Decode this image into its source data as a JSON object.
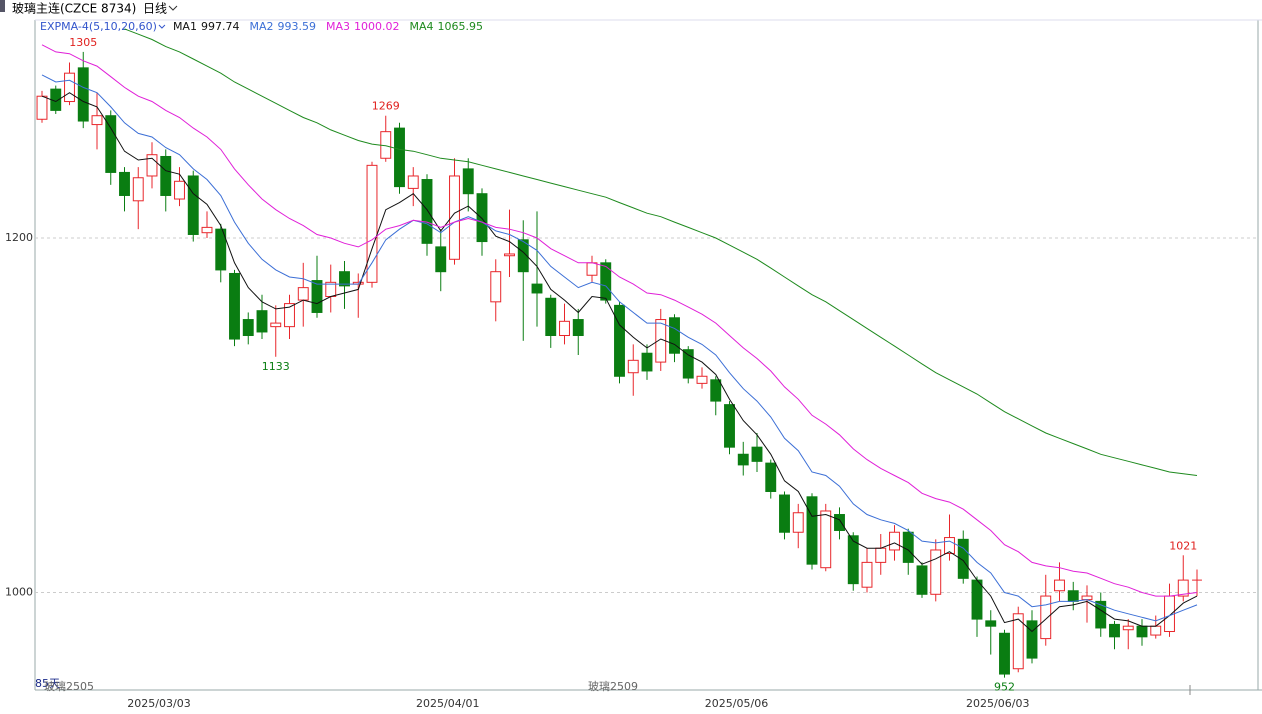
{
  "chart_data": {
    "type": "candlestick",
    "title": "玻璃主连(CZCE 8734)",
    "period": "日线",
    "indicator": "EXPMA-4(5,10,20,60)",
    "footer_labels": {
      "days": "85天",
      "contracts": [
        "玻璃2505",
        "玻璃2509"
      ]
    },
    "categories": [
      null,
      null,
      null,
      null,
      null,
      null,
      null,
      null,
      "2025/03/03",
      null,
      null,
      null,
      null,
      null,
      null,
      null,
      null,
      null,
      null,
      null,
      null,
      null,
      null,
      null,
      null,
      null,
      null,
      null,
      null,
      "2025/04/01",
      null,
      null,
      null,
      null,
      null,
      null,
      null,
      null,
      null,
      null,
      null,
      null,
      null,
      null,
      null,
      null,
      null,
      null,
      null,
      null,
      "2025/05/06",
      null,
      null,
      null,
      null,
      null,
      null,
      null,
      null,
      null,
      null,
      null,
      null,
      null,
      null,
      null,
      null,
      null,
      null,
      "2025/06/03",
      null,
      null,
      null,
      null,
      null,
      null,
      null,
      null,
      null,
      null,
      null,
      null,
      null,
      null,
      null
    ],
    "open": [
      1267,
      1284,
      1277,
      1296,
      1264,
      1269,
      1237,
      1221,
      1235,
      1246,
      1222,
      1235,
      1203,
      1205,
      1180,
      1154,
      1159,
      1150,
      1150,
      1165,
      1176,
      1167,
      1181,
      1174,
      1175,
      1245,
      1262,
      1228,
      1233,
      1195,
      1188,
      1239,
      1225,
      1164,
      1190,
      1199,
      1174,
      1166,
      1145,
      1154,
      1179,
      1186,
      1162,
      1124,
      1135,
      1130,
      1155,
      1137,
      1118,
      1120,
      1106,
      1078,
      1082,
      1073,
      1055,
      1034,
      1054,
      1014,
      1044,
      1032,
      1003,
      1017,
      1024,
      1034,
      1015,
      999,
      1022,
      1030,
      1007,
      984,
      977,
      957,
      984,
      974,
      1001,
      1001,
      996,
      995,
      982,
      979,
      981,
      976,
      978,
      998,
      1007
    ],
    "high": [
      1283,
      1286,
      1299,
      1305,
      1282,
      1272,
      1240,
      1240,
      1254,
      1250,
      1240,
      1238,
      1215,
      1208,
      1182,
      1158,
      1168,
      1162,
      1168,
      1186,
      1190,
      1185,
      1187,
      1180,
      1243,
      1269,
      1265,
      1240,
      1236,
      1205,
      1245,
      1245,
      1228,
      1188,
      1216,
      1210,
      1215,
      1168,
      1163,
      1160,
      1190,
      1188,
      1164,
      1140,
      1140,
      1160,
      1157,
      1139,
      1127,
      1122,
      1108,
      1085,
      1090,
      1075,
      1057,
      1050,
      1056,
      1050,
      1048,
      1034,
      1025,
      1033,
      1038,
      1036,
      1017,
      1030,
      1044,
      1035,
      1009,
      990,
      979,
      992,
      990,
      1010,
      1017,
      1006,
      1004,
      1000,
      984,
      985,
      985,
      987,
      1005,
      1021,
      1013
    ],
    "low": [
      1265,
      1270,
      1275,
      1262,
      1250,
      1230,
      1215,
      1205,
      1228,
      1215,
      1218,
      1198,
      1200,
      1175,
      1139,
      1140,
      1143,
      1133,
      1143,
      1150,
      1155,
      1158,
      1160,
      1155,
      1172,
      1243,
      1225,
      1218,
      1190,
      1170,
      1185,
      1215,
      1190,
      1153,
      1178,
      1142,
      1150,
      1138,
      1140,
      1134,
      1175,
      1163,
      1118,
      1111,
      1120,
      1125,
      1130,
      1118,
      1115,
      1100,
      1078,
      1066,
      1068,
      1053,
      1030,
      1025,
      1013,
      1012,
      1030,
      1001,
      1000,
      1010,
      1018,
      1010,
      997,
      995,
      1018,
      1005,
      975,
      965,
      952,
      955,
      960,
      970,
      995,
      990,
      983,
      975,
      968,
      968,
      970,
      974,
      975,
      995,
      998
    ],
    "close": [
      1280,
      1272,
      1293,
      1266,
      1269,
      1237,
      1224,
      1234,
      1247,
      1224,
      1232,
      1202,
      1206,
      1182,
      1143,
      1145,
      1147,
      1152,
      1163,
      1172,
      1158,
      1175,
      1173,
      1175,
      1241,
      1260,
      1229,
      1235,
      1197,
      1181,
      1235,
      1225,
      1198,
      1181,
      1191,
      1181,
      1169,
      1145,
      1153,
      1145,
      1186,
      1165,
      1122,
      1131,
      1125,
      1154,
      1135,
      1121,
      1122,
      1108,
      1082,
      1072,
      1074,
      1057,
      1034,
      1045,
      1016,
      1046,
      1035,
      1005,
      1017,
      1025,
      1034,
      1017,
      999,
      1024,
      1031,
      1008,
      985,
      981,
      954,
      988,
      963,
      998,
      1007,
      995,
      998,
      980,
      975,
      981,
      975,
      981,
      998,
      1007,
      1007
    ],
    "up_color": "#e8262b",
    "down_color": "#0a7d12",
    "max_labels": [
      1305,
      1269,
      1021
    ],
    "min_labels": [
      1133,
      952
    ],
    "series": [
      {
        "name": "MA1",
        "legend_value": 997.74,
        "color": "#111111",
        "values": [
          1280,
          1277,
          1282,
          1277,
          1274,
          1262,
          1249,
          1244,
          1245,
          1238,
          1236,
          1225,
          1219,
          1207,
          1186,
          1172,
          1164,
          1160,
          1161,
          1165,
          1163,
          1167,
          1169,
          1171,
          1194,
          1216,
          1220,
          1225,
          1216,
          1204,
          1214,
          1218,
          1211,
          1201,
          1198,
          1192,
          1184,
          1171,
          1165,
          1158,
          1167,
          1166,
          1151,
          1144,
          1138,
          1143,
          1140,
          1134,
          1130,
          1123,
          1109,
          1097,
          1089,
          1078,
          1063,
          1057,
          1043,
          1044,
          1041,
          1029,
          1025,
          1025,
          1028,
          1024,
          1016,
          1019,
          1023,
          1018,
          1007,
          998,
          983,
          985,
          978,
          985,
          992,
          993,
          995,
          990,
          985,
          984,
          981,
          981,
          987,
          994,
          998
        ]
      },
      {
        "name": "MA2",
        "legend_value": 993.59,
        "color": "#3c6fd6",
        "values": [
          1292,
          1288,
          1289,
          1285,
          1282,
          1274,
          1265,
          1259,
          1257,
          1251,
          1247,
          1239,
          1233,
          1224,
          1209,
          1197,
          1188,
          1182,
          1178,
          1177,
          1174,
          1174,
          1174,
          1174,
          1186,
          1199,
          1205,
          1210,
          1208,
          1203,
          1209,
          1212,
          1209,
          1204,
          1202,
          1198,
          1193,
          1184,
          1178,
          1172,
          1175,
          1173,
          1164,
          1158,
          1152,
          1152,
          1149,
          1144,
          1140,
          1134,
          1124,
          1115,
          1108,
          1099,
          1087,
          1080,
          1068,
          1066,
          1060,
          1050,
          1044,
          1041,
          1039,
          1035,
          1029,
          1028,
          1029,
          1025,
          1017,
          1011,
          1000,
          998,
          992,
          993,
          995,
          995,
          996,
          993,
          990,
          988,
          986,
          984,
          987,
          990,
          993
        ]
      },
      {
        "name": "MA3",
        "legend_value": 1000.02,
        "color": "#e020d8",
        "values": [
          1309,
          1305,
          1304,
          1300,
          1297,
          1291,
          1285,
          1280,
          1277,
          1272,
          1268,
          1262,
          1257,
          1250,
          1239,
          1230,
          1222,
          1216,
          1211,
          1207,
          1202,
          1200,
          1197,
          1195,
          1199,
          1205,
          1207,
          1210,
          1209,
          1206,
          1209,
          1211,
          1209,
          1206,
          1205,
          1203,
          1200,
          1194,
          1190,
          1186,
          1186,
          1184,
          1178,
          1174,
          1169,
          1168,
          1165,
          1161,
          1157,
          1152,
          1145,
          1138,
          1132,
          1125,
          1116,
          1109,
          1100,
          1095,
          1089,
          1081,
          1075,
          1070,
          1066,
          1062,
          1056,
          1053,
          1051,
          1047,
          1041,
          1035,
          1027,
          1023,
          1017,
          1015,
          1014,
          1012,
          1011,
          1008,
          1005,
          1003,
          1000,
          998,
          998,
          999,
          1000
        ]
      },
      {
        "name": "MA4",
        "legend_value": 1065.95,
        "color": "#1e8a1e",
        "values": [
          null,
          null,
          null,
          null,
          null,
          null,
          1318,
          1315,
          1312,
          1308,
          1305,
          1301,
          1297,
          1293,
          1288,
          1284,
          1280,
          1276,
          1272,
          1268,
          1265,
          1261,
          1258,
          1255,
          1253,
          1252,
          1250,
          1249,
          1247,
          1245,
          1244,
          1243,
          1241,
          1239,
          1237,
          1235,
          1233,
          1231,
          1229,
          1227,
          1225,
          1223,
          1220,
          1217,
          1214,
          1212,
          1209,
          1206,
          1203,
          1200,
          1196,
          1192,
          1188,
          1183,
          1178,
          1173,
          1168,
          1164,
          1159,
          1154,
          1149,
          1144,
          1139,
          1134,
          1129,
          1124,
          1120,
          1116,
          1112,
          1107,
          1102,
          1098,
          1094,
          1090,
          1087,
          1084,
          1081,
          1078,
          1076,
          1074,
          1072,
          1070,
          1068,
          1067,
          1066
        ]
      }
    ],
    "ylim": [
      945,
      1323
    ],
    "yticks": [
      1000,
      1200
    ],
    "grid": true
  }
}
